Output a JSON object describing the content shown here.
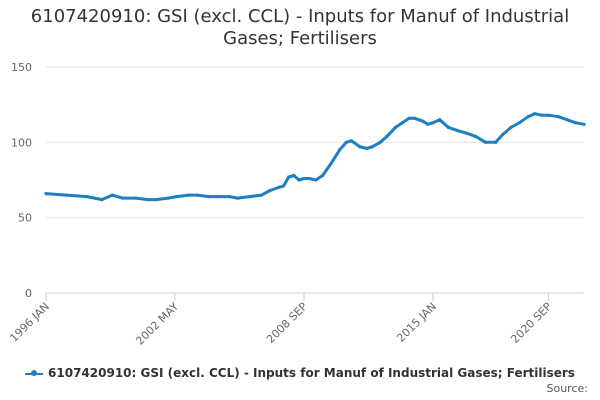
{
  "chart_data": {
    "type": "line",
    "title": "6107420910: GSI (excl. CCL) - Inputs for Manuf of Industrial Gases; Fertilisers",
    "title_lines": [
      "6107420910: GSI (excl. CCL) - Inputs for Manuf of Industrial",
      "Gases; Fertilisers"
    ],
    "xlabel": "",
    "ylabel": "",
    "x_ticks": [
      "1996 JAN",
      "2002 MAY",
      "2008 SEP",
      "2015 JAN",
      "2020 SEP"
    ],
    "ylim": [
      0,
      150
    ],
    "y_ticks": [
      0,
      50,
      100,
      150
    ],
    "grid": true,
    "legend_position": "bottom",
    "series": [
      {
        "name": "6107420910: GSI (excl. CCL) - Inputs for Manuf of Industrial Gases; Fertilisers",
        "color": "#1f7fc0",
        "points": [
          [
            "1996-01",
            66
          ],
          [
            "1997-01",
            65
          ],
          [
            "1998-01",
            64
          ],
          [
            "1998-10",
            62
          ],
          [
            "1999-04",
            65
          ],
          [
            "1999-10",
            63
          ],
          [
            "2000-06",
            63
          ],
          [
            "2001-01",
            62
          ],
          [
            "2001-06",
            62
          ],
          [
            "2002-01",
            63
          ],
          [
            "2002-06",
            64
          ],
          [
            "2003-01",
            65
          ],
          [
            "2003-06",
            65
          ],
          [
            "2004-01",
            64
          ],
          [
            "2004-06",
            64
          ],
          [
            "2005-01",
            64
          ],
          [
            "2005-06",
            63
          ],
          [
            "2006-01",
            64
          ],
          [
            "2006-08",
            65
          ],
          [
            "2007-01",
            68
          ],
          [
            "2007-06",
            70
          ],
          [
            "2007-09",
            71
          ],
          [
            "2007-12",
            77
          ],
          [
            "2008-03",
            78
          ],
          [
            "2008-06",
            75
          ],
          [
            "2008-09",
            76
          ],
          [
            "2008-12",
            76
          ],
          [
            "2009-04",
            75
          ],
          [
            "2009-08",
            78
          ],
          [
            "2010-01",
            86
          ],
          [
            "2010-06",
            95
          ],
          [
            "2010-10",
            100
          ],
          [
            "2011-01",
            101
          ],
          [
            "2011-06",
            97
          ],
          [
            "2011-10",
            96
          ],
          [
            "2012-01",
            97
          ],
          [
            "2012-06",
            100
          ],
          [
            "2012-10",
            104
          ],
          [
            "2013-03",
            110
          ],
          [
            "2013-07",
            113
          ],
          [
            "2013-11",
            116
          ],
          [
            "2014-02",
            116
          ],
          [
            "2014-07",
            114
          ],
          [
            "2014-10",
            112
          ],
          [
            "2015-01",
            113
          ],
          [
            "2015-05",
            115
          ],
          [
            "2015-10",
            110
          ],
          [
            "2016-03",
            108
          ],
          [
            "2016-09",
            106
          ],
          [
            "2017-02",
            104
          ],
          [
            "2017-08",
            100
          ],
          [
            "2018-02",
            100
          ],
          [
            "2018-06",
            105
          ],
          [
            "2018-11",
            110
          ],
          [
            "2019-04",
            113
          ],
          [
            "2019-09",
            117
          ],
          [
            "2020-01",
            119
          ],
          [
            "2020-05",
            118
          ],
          [
            "2020-09",
            118
          ],
          [
            "2021-03",
            117
          ],
          [
            "2021-08",
            115
          ],
          [
            "2022-01",
            113
          ],
          [
            "2022-06",
            112
          ]
        ]
      }
    ]
  },
  "footer": {
    "source_label": "Source:"
  }
}
